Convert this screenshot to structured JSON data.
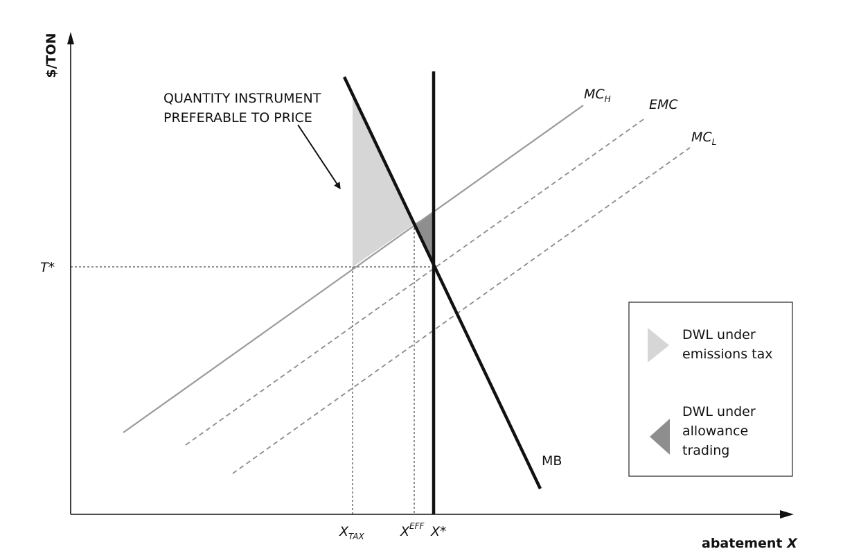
{
  "diagram": {
    "y_axis_label": "$/TON",
    "x_axis_label_text": "abatement ",
    "x_axis_label_var": "X",
    "tick_t_star": "T*",
    "tick_x_tax_main": "X",
    "tick_x_tax_sub": "TAX",
    "tick_x_eff_main": "X",
    "tick_x_eff_sup": "EFF",
    "tick_x_star": "X*",
    "annotation_line1": "QUANTITY INSTRUMENT",
    "annotation_line2": "PREFERABLE TO PRICE",
    "curve_mch_main": "MC",
    "curve_mch_sub": "H",
    "curve_emc": "EMC",
    "curve_mcl_main": "MC",
    "curve_mcl_sub": "L",
    "curve_mb": "MB",
    "colors": {
      "axis": "#111111",
      "mc_h": "#9a9a9a",
      "dashed_mc": "#8a8a8a",
      "dwl_tax": "#d6d6d6",
      "dwl_trading": "#8e8e8e"
    }
  },
  "legend": {
    "item1_line1": "DWL under",
    "item1_line2": "emissions tax",
    "item2_line1": "DWL under",
    "item2_line2": "allowance",
    "item2_line3": "trading"
  }
}
